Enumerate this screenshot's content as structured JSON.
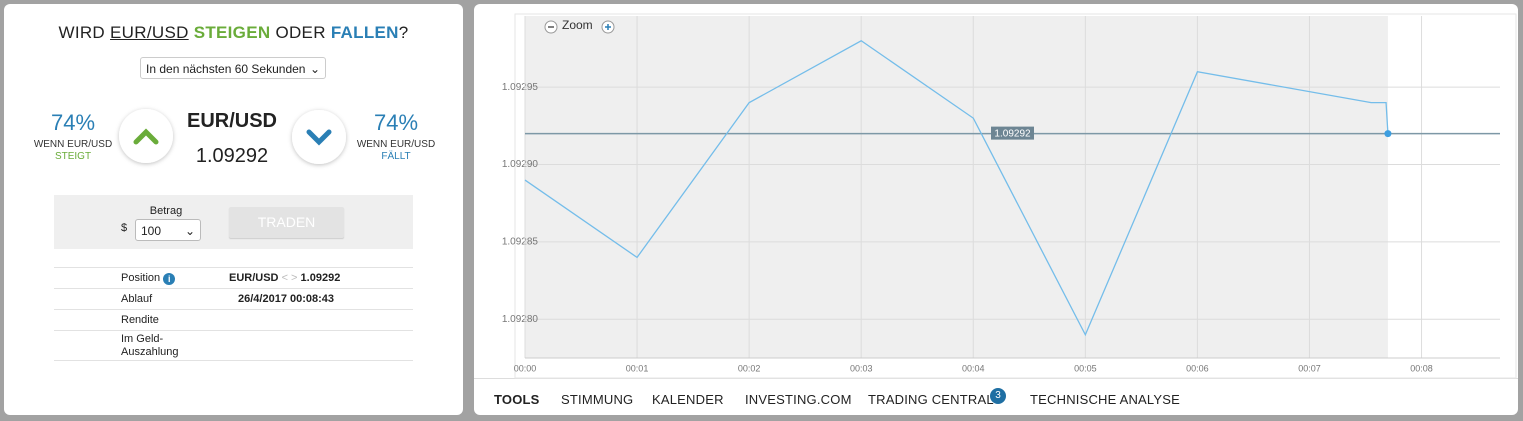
{
  "trade_panel": {
    "question": {
      "prefix": "WIRD",
      "pair": "EUR/USD",
      "up": "STEIGEN",
      "middle": "ODER",
      "down": "FALLEN",
      "suffix": "?"
    },
    "period": "In den nächsten 60 Sekunden",
    "up_option": {
      "payout": "74%",
      "caption": "WENN EUR/USD",
      "direction": "STEIGT"
    },
    "asset": {
      "pair": "EUR/USD",
      "price": "1.09292"
    },
    "down_option": {
      "payout": "74%",
      "caption": "WENN EUR/USD",
      "direction": "FÄLLT"
    },
    "amount": {
      "label": "Betrag",
      "currency": "$",
      "value": "100"
    },
    "trade_button": "TRADEN",
    "details": [
      {
        "label": "Position",
        "value": "EUR/USD",
        "separator": "< >",
        "price": "1.09292"
      },
      {
        "label": "Ablauf",
        "value": "26/4/2017 00:08:43"
      },
      {
        "label": "Rendite"
      },
      {
        "label": "Im Geld-Auszahlung"
      }
    ]
  },
  "chart_data": {
    "type": "line",
    "zoom_label": "Zoom",
    "x": [
      0,
      60,
      120,
      180,
      240,
      300,
      360,
      453,
      461,
      462
    ],
    "values": [
      1.09289,
      1.09284,
      1.09294,
      1.09298,
      1.09293,
      1.09279,
      1.09296,
      1.09294,
      1.09294,
      1.09292
    ],
    "color": "#74bdea",
    "current_price": 1.09292,
    "xlim": [
      0,
      522
    ],
    "ylim": [
      1.092775,
      1.092996
    ],
    "xticks": [
      {
        "value": 0,
        "label": "00:00"
      },
      {
        "value": 60,
        "label": "00:01"
      },
      {
        "value": 120,
        "label": "00:02"
      },
      {
        "value": 180,
        "label": "00:03"
      },
      {
        "value": 240,
        "label": "00:04"
      },
      {
        "value": 300,
        "label": "00:05"
      },
      {
        "value": 360,
        "label": "00:06"
      },
      {
        "value": 420,
        "label": "00:07"
      },
      {
        "value": 480,
        "label": "00:08"
      }
    ],
    "yticks": [
      {
        "value": 1.0928,
        "label": "1.09280"
      },
      1.09285,
      {
        "value": 1.0929,
        "label": "1.09290"
      },
      1.09295
    ],
    "grid": true
  },
  "tabs": {
    "items": [
      "TOOLS",
      "STIMMUNG",
      "KALENDER",
      "INVESTING.COM",
      "TRADING CENTRAL",
      "TECHNISCHE ANALYSE"
    ],
    "badge": "3"
  }
}
